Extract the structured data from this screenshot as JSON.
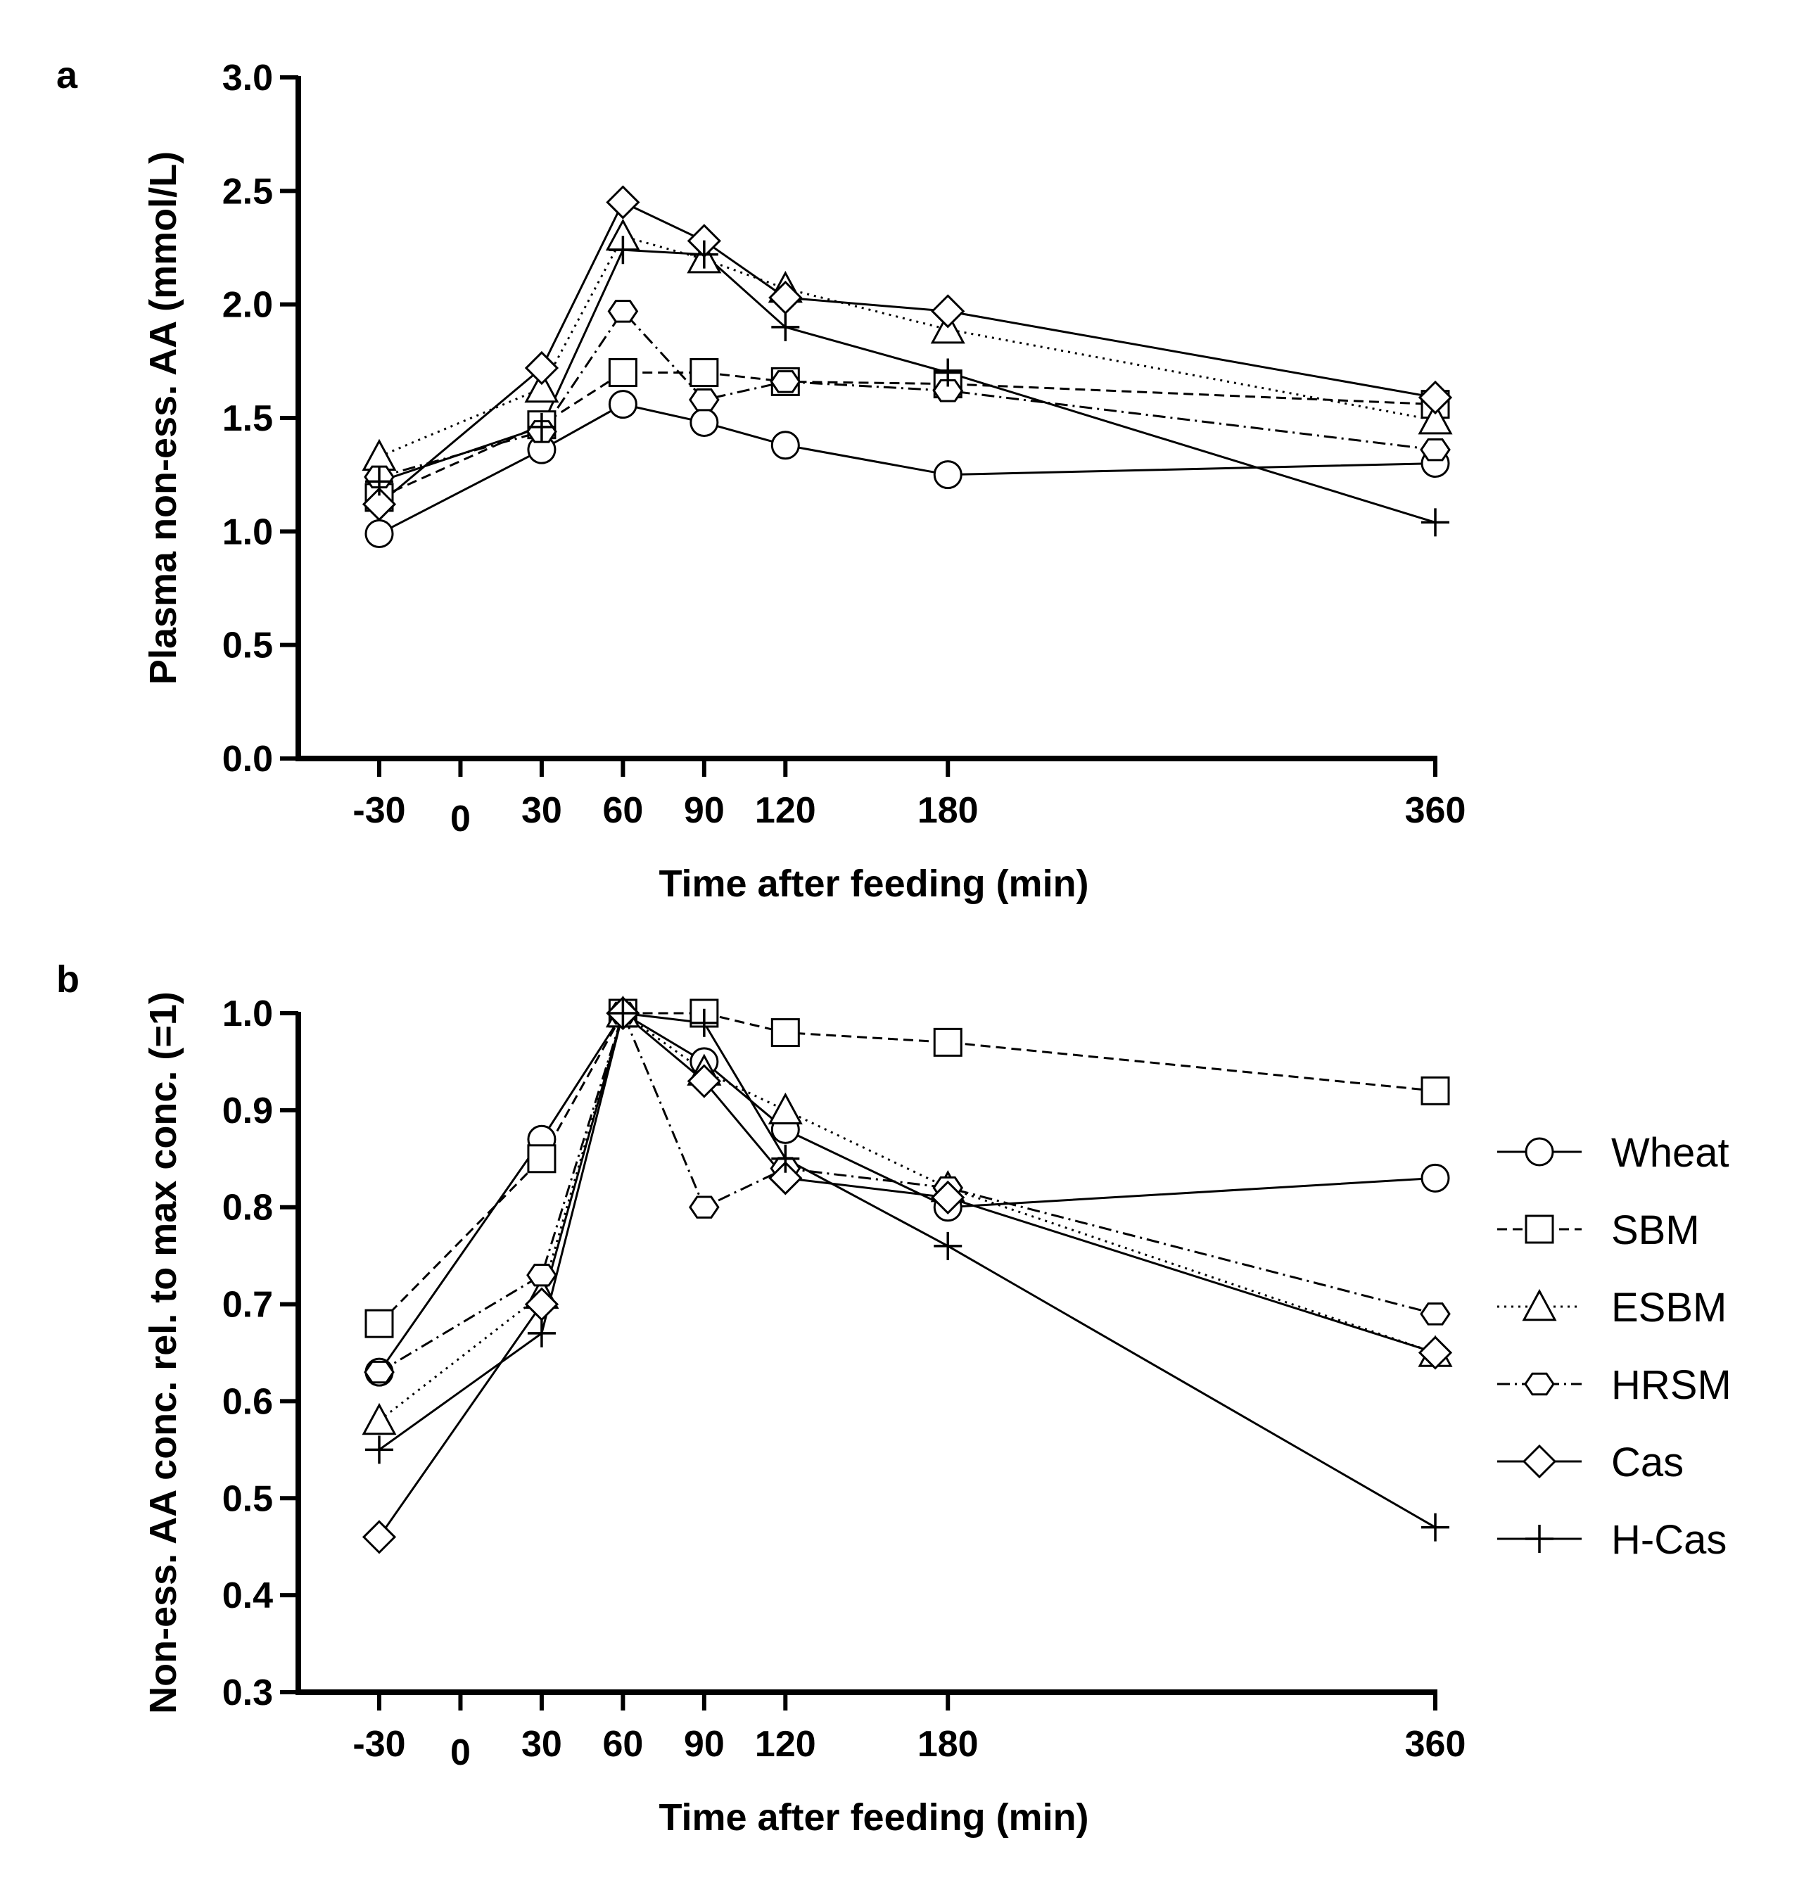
{
  "series_styles": [
    {
      "name": "Wheat",
      "marker": "circle",
      "dash": "solid"
    },
    {
      "name": "SBM",
      "marker": "square",
      "dash": "dashed"
    },
    {
      "name": "ESBM",
      "marker": "triangle",
      "dash": "dotted"
    },
    {
      "name": "HRSM",
      "marker": "hexagon",
      "dash": "dashdot"
    },
    {
      "name": "Cas",
      "marker": "diamond",
      "dash": "solid"
    },
    {
      "name": "H-Cas",
      "marker": "plus",
      "dash": "solid"
    }
  ],
  "legend": {
    "entries": [
      "Wheat",
      "SBM",
      "ESBM",
      "HRSM",
      "Cas",
      "H-Cas"
    ]
  },
  "chart_data": [
    {
      "panel": "a",
      "type": "line",
      "xlabel": "Time after feeding (min)",
      "ylabel": "Plasma non-ess. AA (mmol/L)",
      "x_ticks": [
        -30,
        0,
        30,
        60,
        90,
        120,
        180,
        360
      ],
      "x_tick_labels": [
        "-30",
        "0",
        "30",
        "60",
        "90",
        "120",
        "180",
        "360"
      ],
      "y_ticks": [
        0.0,
        0.5,
        1.0,
        1.5,
        2.0,
        2.5,
        3.0
      ],
      "y_tick_labels": [
        "0.0",
        "0.5",
        "1.0",
        "1.5",
        "2.0",
        "2.5",
        "3.0"
      ],
      "ylim": [
        0,
        3.0
      ],
      "x": [
        -30,
        30,
        60,
        90,
        120,
        180,
        360
      ],
      "series": [
        {
          "name": "Wheat",
          "values": [
            0.99,
            1.36,
            1.56,
            1.48,
            1.38,
            1.25,
            1.3
          ]
        },
        {
          "name": "SBM",
          "values": [
            1.15,
            1.47,
            1.7,
            1.7,
            1.66,
            1.65,
            1.56
          ]
        },
        {
          "name": "ESBM",
          "values": [
            1.33,
            1.63,
            2.3,
            2.2,
            2.07,
            1.89,
            1.49
          ]
        },
        {
          "name": "HRSM",
          "values": [
            1.24,
            1.44,
            1.97,
            1.58,
            1.66,
            1.62,
            1.36
          ]
        },
        {
          "name": "Cas",
          "values": [
            1.12,
            1.72,
            2.45,
            2.28,
            2.03,
            1.97,
            1.59
          ]
        },
        {
          "name": "H-Cas",
          "values": [
            1.22,
            1.46,
            2.24,
            2.22,
            1.9,
            1.7,
            1.04
          ]
        }
      ]
    },
    {
      "panel": "b",
      "type": "line",
      "xlabel": "Time after feeding (min)",
      "ylabel": "Non-ess. AA conc. rel. to max conc. (=1)",
      "x_ticks": [
        -30,
        0,
        30,
        60,
        90,
        120,
        180,
        360
      ],
      "x_tick_labels": [
        "-30",
        "0",
        "30",
        "60",
        "90",
        "120",
        "180",
        "360"
      ],
      "y_ticks": [
        0.3,
        0.4,
        0.5,
        0.6,
        0.7,
        0.8,
        0.9,
        1.0
      ],
      "y_tick_labels": [
        "0.3",
        "0.4",
        "0.5",
        "0.6",
        "0.7",
        "0.8",
        "0.9",
        "1.0"
      ],
      "ylim": [
        0.3,
        1.0
      ],
      "x": [
        -30,
        30,
        60,
        90,
        120,
        180,
        360
      ],
      "series": [
        {
          "name": "Wheat",
          "values": [
            0.63,
            0.87,
            1.0,
            0.95,
            0.88,
            0.8,
            0.83
          ]
        },
        {
          "name": "SBM",
          "values": [
            0.68,
            0.85,
            1.0,
            1.0,
            0.98,
            0.97,
            0.92
          ]
        },
        {
          "name": "ESBM",
          "values": [
            0.58,
            0.71,
            1.0,
            0.94,
            0.9,
            0.82,
            0.65
          ]
        },
        {
          "name": "HRSM",
          "values": [
            0.63,
            0.73,
            1.0,
            0.8,
            0.84,
            0.82,
            0.69
          ]
        },
        {
          "name": "Cas",
          "values": [
            0.46,
            0.7,
            1.0,
            0.93,
            0.83,
            0.81,
            0.65
          ]
        },
        {
          "name": "H-Cas",
          "values": [
            0.55,
            0.67,
            1.0,
            0.99,
            0.85,
            0.76,
            0.47
          ]
        }
      ]
    }
  ]
}
